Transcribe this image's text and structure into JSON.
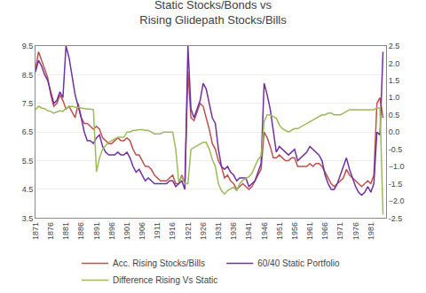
{
  "chart_data": {
    "type": "line",
    "title": "Static Stocks/Bonds vs\nRising Glidepath Stocks/Bills",
    "x": [
      1871,
      1872,
      1873,
      1874,
      1875,
      1876,
      1877,
      1878,
      1879,
      1880,
      1881,
      1882,
      1883,
      1884,
      1885,
      1886,
      1887,
      1888,
      1889,
      1890,
      1891,
      1892,
      1893,
      1894,
      1895,
      1896,
      1897,
      1898,
      1899,
      1900,
      1901,
      1902,
      1903,
      1904,
      1905,
      1906,
      1907,
      1908,
      1909,
      1910,
      1911,
      1912,
      1913,
      1914,
      1915,
      1916,
      1917,
      1918,
      1919,
      1920,
      1921,
      1922,
      1923,
      1924,
      1925,
      1926,
      1927,
      1928,
      1929,
      1930,
      1931,
      1932,
      1933,
      1934,
      1935,
      1936,
      1937,
      1938,
      1939,
      1940,
      1941,
      1942,
      1943,
      1944,
      1945,
      1946,
      1947,
      1948,
      1949,
      1950,
      1951,
      1952,
      1953,
      1954,
      1955,
      1956,
      1957,
      1958,
      1959,
      1960,
      1961,
      1962,
      1963,
      1964,
      1965,
      1966,
      1967,
      1968,
      1969,
      1970,
      1971,
      1972,
      1973,
      1974,
      1975,
      1976,
      1977,
      1978,
      1979,
      1980,
      1981,
      1982,
      1983,
      1984,
      1985
    ],
    "xlim": [
      1871,
      1986
    ],
    "xticks": [
      1871,
      1876,
      1881,
      1886,
      1891,
      1896,
      1901,
      1906,
      1911,
      1916,
      1921,
      1926,
      1931,
      1936,
      1941,
      1946,
      1951,
      1956,
      1961,
      1966,
      1971,
      1976,
      1981
    ],
    "ylim": [
      3.5,
      9.5
    ],
    "yticks": [
      3.5,
      4.5,
      5.5,
      6.5,
      7.5,
      8.5,
      9.5
    ],
    "y2lim": [
      -2.5,
      2.5
    ],
    "y2ticks": [
      -2.5,
      {
        "value": -2.0,
        "label": "−2.0"
      },
      -1.5,
      {
        "value": -1.0,
        "label": "−1.0"
      },
      -0.5,
      {
        "value": 0.0,
        "label": "0.0"
      },
      0.5,
      {
        "value": 1.0,
        "label": "1.0"
      },
      1.5,
      {
        "value": 2.0,
        "label": "2.0"
      },
      2.5
    ],
    "grid": true,
    "legend": "bottom",
    "series": [
      {
        "name": "Acc. Rising Stocks/Bills",
        "color": "#C0504D",
        "values": [
          8.7,
          9.3,
          9.0,
          8.7,
          8.4,
          7.8,
          7.4,
          7.5,
          7.8,
          7.6,
          7.3,
          7.4,
          7.2,
          7.0,
          7.5,
          7.0,
          6.8,
          6.8,
          6.7,
          6.6,
          6.7,
          6.6,
          6.3,
          6.2,
          6.1,
          6.1,
          6.2,
          6.3,
          6.2,
          6.2,
          6.3,
          6.2,
          5.9,
          5.7,
          5.7,
          5.5,
          5.3,
          5.3,
          5.2,
          5.0,
          4.9,
          4.8,
          4.8,
          4.8,
          4.9,
          5.0,
          4.7,
          4.7,
          5.0,
          4.7,
          8.6,
          7.0,
          6.9,
          7.2,
          7.5,
          7.4,
          7.0,
          6.6,
          6.1,
          5.9,
          5.5,
          5.3,
          4.9,
          5.0,
          4.8,
          4.7,
          4.5,
          4.6,
          4.7,
          4.6,
          4.5,
          4.6,
          4.8,
          5.0,
          5.2,
          6.5,
          6.3,
          6.0,
          5.6,
          5.6,
          5.7,
          5.6,
          5.5,
          5.5,
          5.6,
          5.6,
          5.3,
          5.3,
          5.3,
          5.3,
          5.4,
          5.3,
          5.4,
          5.4,
          5.3,
          5.1,
          4.9,
          4.7,
          4.6,
          4.7,
          4.8,
          4.9,
          5.2,
          5.0,
          4.9,
          4.8,
          4.7,
          4.6,
          4.7,
          4.8,
          4.7,
          5.0,
          7.5,
          7.7,
          7.0
        ]
      },
      {
        "name": "60/40 Static Portfolio",
        "color": "#7030A0",
        "values": [
          8.6,
          9.0,
          8.8,
          8.5,
          8.3,
          7.9,
          7.5,
          7.6,
          7.9,
          7.7,
          9.5,
          9.1,
          8.5,
          7.8,
          7.4,
          7.0,
          6.5,
          6.2,
          6.2,
          6.1,
          6.3,
          6.4,
          6.0,
          5.8,
          5.7,
          5.7,
          5.7,
          5.8,
          5.7,
          5.7,
          5.8,
          5.6,
          5.3,
          5.1,
          5.2,
          5.0,
          4.8,
          4.9,
          4.8,
          4.7,
          4.7,
          4.7,
          4.7,
          4.7,
          4.8,
          4.8,
          4.6,
          4.7,
          4.8,
          4.5,
          9.5,
          7.3,
          7.0,
          7.3,
          7.6,
          8.2,
          8.0,
          7.5,
          7.0,
          6.8,
          5.9,
          5.3,
          5.2,
          5.3,
          5.1,
          5.0,
          4.8,
          4.9,
          4.9,
          4.9,
          4.6,
          4.7,
          4.8,
          5.1,
          5.4,
          8.2,
          7.8,
          7.3,
          6.5,
          5.8,
          6.0,
          5.9,
          5.8,
          5.7,
          5.8,
          5.9,
          5.5,
          5.6,
          5.7,
          5.8,
          6.0,
          5.9,
          5.8,
          5.7,
          5.5,
          5.0,
          4.7,
          4.5,
          4.5,
          4.7,
          5.0,
          5.3,
          5.6,
          5.2,
          4.9,
          4.6,
          4.4,
          4.3,
          4.4,
          4.6,
          4.4,
          4.7,
          6.5,
          6.4,
          9.3
        ]
      },
      {
        "name": "Difference Rising Vs Static",
        "color": "#9BBB59",
        "axis": "y2",
        "values": [
          0.65,
          0.75,
          0.7,
          0.68,
          0.62,
          0.6,
          0.55,
          0.58,
          0.62,
          0.6,
          0.7,
          0.73,
          0.75,
          0.72,
          0.72,
          0.7,
          0.68,
          0.67,
          0.67,
          0.65,
          -1.15,
          -0.75,
          -0.5,
          -0.4,
          -0.3,
          -0.25,
          -0.2,
          -0.15,
          -0.15,
          -0.15,
          0.0,
          0.0,
          0.05,
          0.05,
          0.07,
          0.07,
          0.05,
          0.05,
          0.0,
          -0.05,
          -0.05,
          -0.05,
          0.0,
          0.0,
          0.0,
          0.0,
          -0.5,
          -1.45,
          -1.3,
          -1.5,
          -1.5,
          -0.5,
          -0.45,
          -0.4,
          -0.35,
          -0.3,
          -0.3,
          -0.5,
          -0.8,
          -1.0,
          -1.5,
          -1.7,
          -1.8,
          -1.7,
          -1.65,
          -1.6,
          -1.7,
          -1.5,
          -1.4,
          -1.35,
          -1.3,
          -1.2,
          -1.0,
          -0.8,
          -0.7,
          0.3,
          0.5,
          0.5,
          0.45,
          0.4,
          0.2,
          0.1,
          0.05,
          0.0,
          0.05,
          0.1,
          0.1,
          0.15,
          0.2,
          0.25,
          0.3,
          0.35,
          0.4,
          0.45,
          0.5,
          0.5,
          0.55,
          0.55,
          0.5,
          0.5,
          0.5,
          0.55,
          0.6,
          0.65,
          0.65,
          0.65,
          0.65,
          0.65,
          0.65,
          0.65,
          0.65,
          0.65,
          0.7,
          0.7,
          -2.4
        ]
      }
    ]
  }
}
